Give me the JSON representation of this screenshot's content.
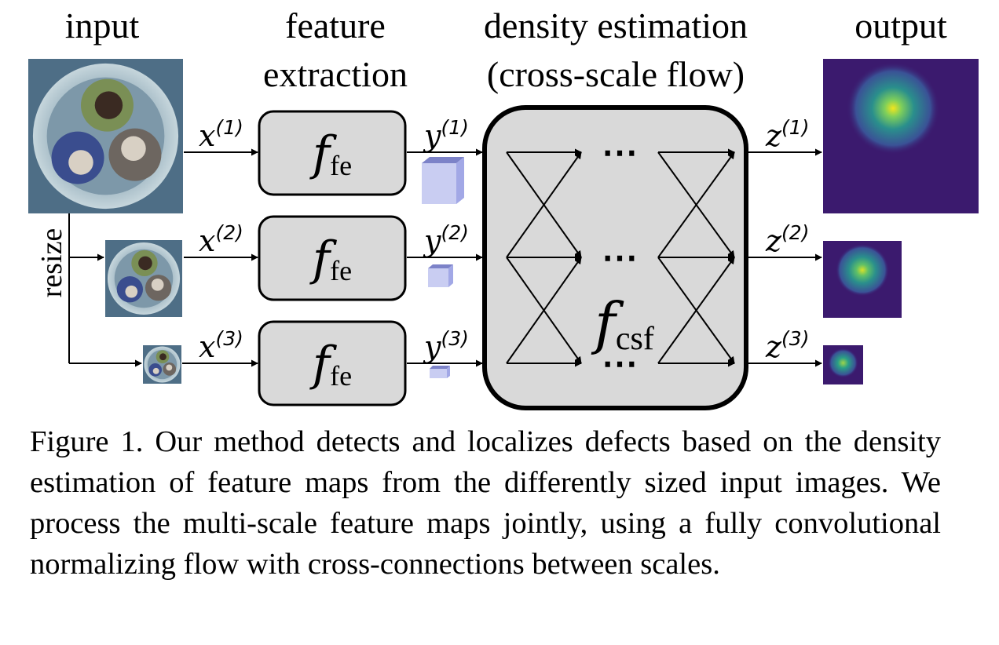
{
  "headers": {
    "input": "input",
    "feature_extraction_1": "feature",
    "feature_extraction_2": "extraction",
    "density_1": "density estimation",
    "density_2": "(cross-scale flow)",
    "output": "output"
  },
  "side_label": "resize",
  "inputs": [
    {
      "var": "x",
      "sup": "(1)"
    },
    {
      "var": "x",
      "sup": "(2)"
    },
    {
      "var": "x",
      "sup": "(3)"
    }
  ],
  "features": [
    {
      "var": "y",
      "sup": "(1)"
    },
    {
      "var": "y",
      "sup": "(2)"
    },
    {
      "var": "y",
      "sup": "(3)"
    }
  ],
  "outputs": [
    {
      "var": "z",
      "sup": "(1)"
    },
    {
      "var": "z",
      "sup": "(2)"
    },
    {
      "var": "z",
      "sup": "(3)"
    }
  ],
  "extractor": {
    "main": "f",
    "sub": "fe"
  },
  "flow": {
    "main": "f",
    "sub": "csf",
    "ellipsis": "⋯"
  },
  "colors": {
    "box_fill": "#d9d9d9",
    "cube_front": "#c9cdf2",
    "cube_top": "#7c82c8",
    "cube_side": "#a2a8e6",
    "heat_bg": "#3b1a6e",
    "heat_mid": "#2a8f8c",
    "heat_hot": "#f2e51d"
  },
  "caption": "Figure 1. Our method detects and localizes defects based on the density estimation of feature maps from the differently sized input images. We process the multi-scale feature maps jointly, using a fully convolutional normalizing flow with cross-connections between scales."
}
